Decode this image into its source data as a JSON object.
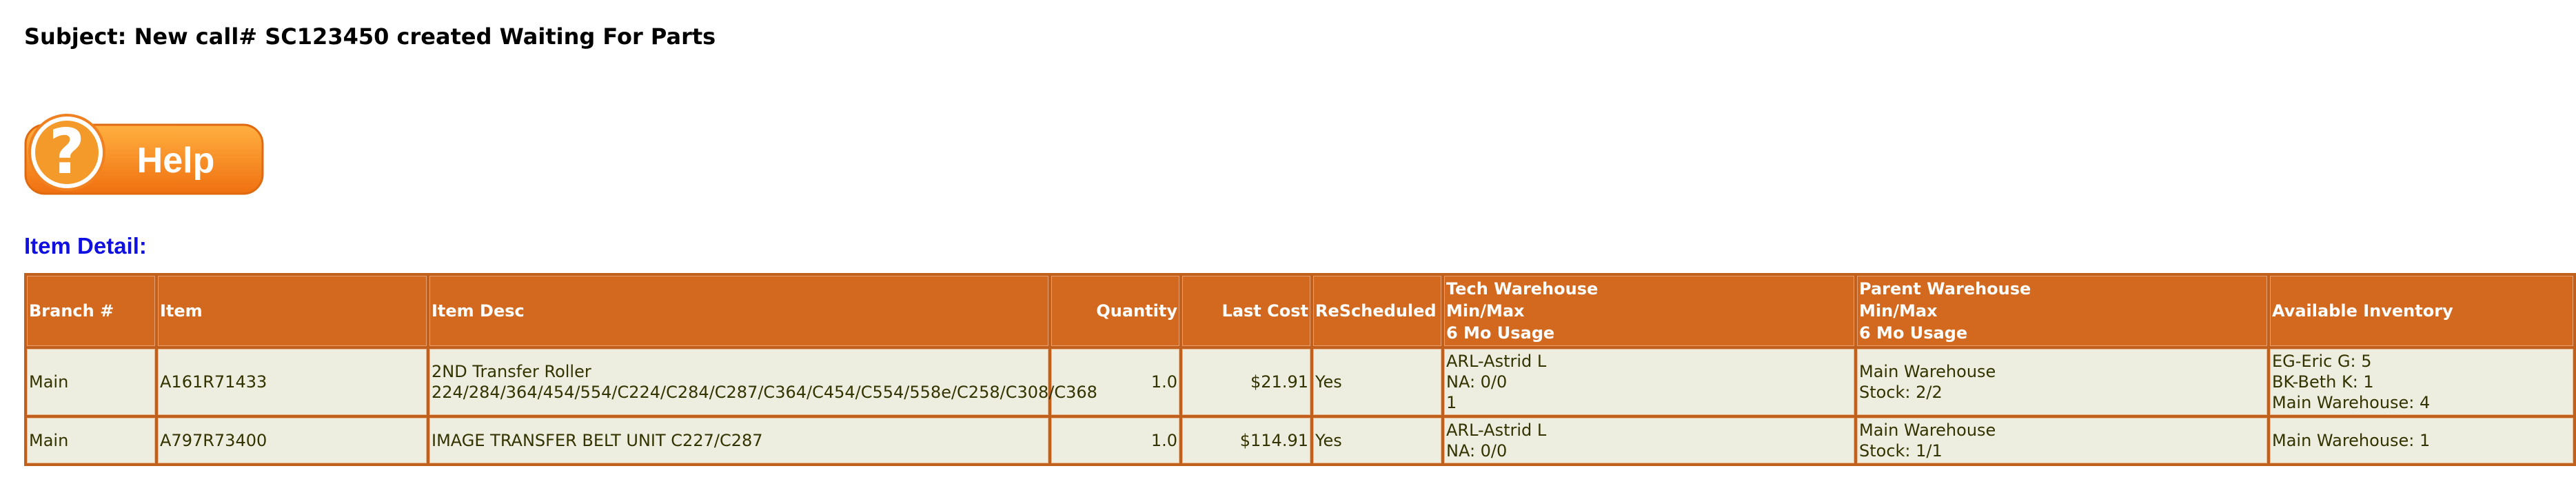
{
  "subject": "Subject: New call# SC123450 created Waiting For Parts",
  "help_button": {
    "label": "Help"
  },
  "section_title": "Item Detail:",
  "table": {
    "headers": [
      [
        "Branch #"
      ],
      [
        "Item"
      ],
      [
        "Item Desc"
      ],
      [
        "Quantity"
      ],
      [
        "Last Cost"
      ],
      [
        "ReScheduled"
      ],
      [
        "Tech Warehouse",
        "Min/Max",
        "6 Mo Usage"
      ],
      [
        "Parent Warehouse",
        "Min/Max",
        "6 Mo Usage"
      ],
      [
        "Available Inventory"
      ]
    ],
    "rows": [
      [
        [
          "Main"
        ],
        [
          "A161R71433"
        ],
        [
          "2ND Transfer Roller",
          "224/284/364/454/554/C224/C284/C287/C364/C454/C554/558e/C258/C308/C368"
        ],
        [
          "1.0"
        ],
        [
          "$21.91"
        ],
        [
          "Yes"
        ],
        [
          "ARL-Astrid L",
          "NA: 0/0",
          "1"
        ],
        [
          "Main Warehouse",
          "Stock: 2/2"
        ],
        [
          "EG-Eric G: 5",
          "BK-Beth K: 1",
          "Main Warehouse: 4"
        ]
      ],
      [
        [
          "Main"
        ],
        [
          "A797R73400"
        ],
        [
          "IMAGE TRANSFER BELT UNIT C227/C287"
        ],
        [
          "1.0"
        ],
        [
          "$114.91"
        ],
        [
          "Yes"
        ],
        [
          "ARL-Astrid L",
          "NA: 0/0"
        ],
        [
          "Main Warehouse",
          "Stock: 1/1"
        ],
        [
          "Main Warehouse: 1"
        ]
      ]
    ]
  }
}
